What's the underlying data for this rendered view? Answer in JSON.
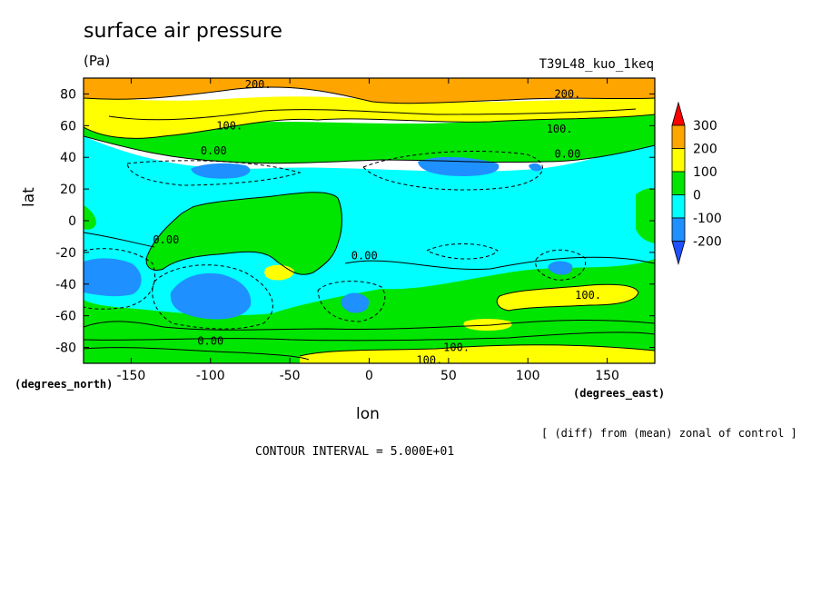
{
  "chart_data": {
    "type": "contour",
    "title": "surface air pressure",
    "units": "(Pa)",
    "run_label": "T39L48_kuo_1keq",
    "xlabel": "lon",
    "ylabel": "lat",
    "x_unit_label": "(degrees_east)",
    "y_unit_label": "(degrees_north)",
    "xlim": [
      -180,
      180
    ],
    "ylim": [
      -90,
      90
    ],
    "x_ticks": [
      -150,
      -100,
      -50,
      0,
      50,
      100,
      150
    ],
    "y_ticks": [
      80,
      60,
      40,
      20,
      0,
      -20,
      -40,
      -60,
      -80
    ],
    "x_tick_labels": [
      "-150",
      "-100",
      "-50",
      "0",
      "50",
      "100",
      "150"
    ],
    "y_tick_labels": [
      "80",
      "60",
      "40",
      "20",
      "0",
      "-20",
      "-40",
      "-60",
      "-80"
    ],
    "contour_interval": 50,
    "colorbar": {
      "labels": [
        "300",
        "200",
        "100",
        "0",
        "-100",
        "-200"
      ],
      "bins": [
        {
          "range": [
            300,
            400
          ],
          "color": "#ff0000"
        },
        {
          "range": [
            200,
            300
          ],
          "color": "#ffa500"
        },
        {
          "range": [
            100,
            200
          ],
          "color": "#ffff00"
        },
        {
          "range": [
            0,
            100
          ],
          "color": "#00e600"
        },
        {
          "range": [
            -100,
            0
          ],
          "color": "#00ffff"
        },
        {
          "range": [
            -200,
            -100
          ],
          "color": "#1e90ff"
        },
        {
          "range": [
            -300,
            -200
          ],
          "color": "#1e50ff"
        }
      ]
    },
    "contour_labels": [
      {
        "text": "200.",
        "lon": -70,
        "lat": 86
      },
      {
        "text": "200.",
        "lon": 125,
        "lat": 80
      },
      {
        "text": "100.",
        "lon": -88,
        "lat": 60
      },
      {
        "text": "100.",
        "lon": 120,
        "lat": 58
      },
      {
        "text": "0.00",
        "lon": -98,
        "lat": 44
      },
      {
        "text": "0.00",
        "lon": 125,
        "lat": 42
      },
      {
        "text": "0.00",
        "lon": -128,
        "lat": -12
      },
      {
        "text": "0.00",
        "lon": -3,
        "lat": -22
      },
      {
        "text": "100.",
        "lon": 138,
        "lat": -47
      },
      {
        "text": "0.00",
        "lon": -100,
        "lat": -76
      },
      {
        "text": "100.",
        "lon": 55,
        "lat": -80
      },
      {
        "text": "100.",
        "lon": 38,
        "lat": -88
      }
    ],
    "regions": [
      {
        "level": 200,
        "desc": "northern polar cap (orange)"
      },
      {
        "level": 100,
        "desc": "northern subpolar band (yellow)"
      },
      {
        "level": 0,
        "desc": "northern mid-latitude band (green)"
      },
      {
        "level": -100,
        "desc": "tropics and subtropics (cyan)"
      },
      {
        "level": 0,
        "desc": "eastern Pacific / South America high (green)"
      },
      {
        "level": -200,
        "desc": "lows near 35N, 120W and 60E; 45S near 175W, 105W, 10W, 120E (blue)"
      },
      {
        "level": 100,
        "desc": "small high near 37S 60W; 45S-55S 80E-170E; Antarctic 80S-90S (yellow)"
      }
    ]
  },
  "labels": {
    "title": "surface air pressure",
    "units": "(Pa)",
    "run": "T39L48_kuo_1keq",
    "note": "[ (diff) from (mean) zonal of control ]",
    "contour_interval": "CONTOUR INTERVAL = 5.000E+01",
    "xlabel": "lon",
    "ylabel": "lat",
    "x_unit": "(degrees_east)",
    "y_unit": "(degrees_north)"
  }
}
